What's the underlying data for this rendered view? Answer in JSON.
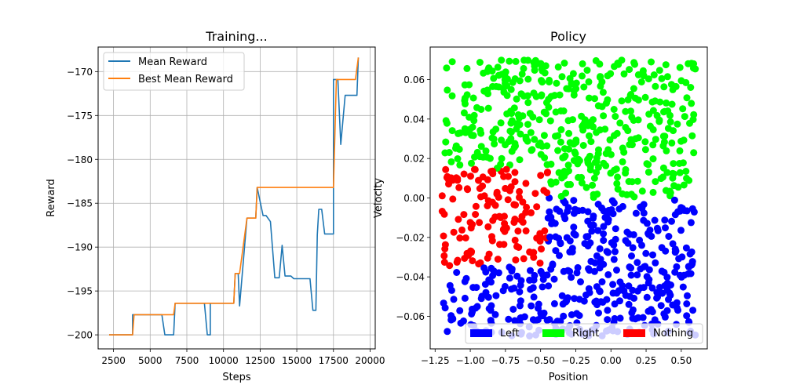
{
  "chart_data": [
    {
      "type": "line",
      "title": "Training...",
      "xlabel": "Steps",
      "ylabel": "Reward",
      "xlim": [
        1450,
        20350
      ],
      "ylim": [
        -201.6,
        -167.2
      ],
      "xticks": [
        2500,
        5000,
        7500,
        10000,
        12500,
        15000,
        17500,
        20000
      ],
      "yticks": [
        -200,
        -195,
        -190,
        -185,
        -180,
        -175,
        -170
      ],
      "grid": true,
      "legend": "upper-left",
      "series": [
        {
          "name": "Mean Reward",
          "color": "#1f77b4",
          "x": [
            2200,
            3800,
            3800,
            5800,
            6000,
            6600,
            6700,
            8700,
            8900,
            9100,
            9100,
            10700,
            10800,
            11000,
            11100,
            11600,
            12200,
            12300,
            12700,
            12900,
            13200,
            13500,
            13800,
            14000,
            14200,
            14400,
            14600,
            14800,
            15200,
            15900,
            16100,
            16300,
            16400,
            16500,
            16700,
            16900,
            17300,
            17500,
            17500,
            17800,
            18000,
            18300,
            18700,
            19100,
            19200
          ],
          "y": [
            -200,
            -200,
            -197.7,
            -197.7,
            -200,
            -200,
            -196.4,
            -196.4,
            -200,
            -200,
            -196.4,
            -196.4,
            -193,
            -193,
            -196.7,
            -186.7,
            -186.7,
            -183.2,
            -186.4,
            -186.4,
            -187.1,
            -193.5,
            -193.5,
            -189.8,
            -193.3,
            -193.3,
            -193.3,
            -193.6,
            -193.6,
            -193.6,
            -197.2,
            -197.2,
            -188.6,
            -185.7,
            -185.7,
            -188.5,
            -188.5,
            -188.5,
            -170.9,
            -170.9,
            -178.3,
            -172.7,
            -172.7,
            -172.7,
            -168.4
          ]
        },
        {
          "name": "Best Mean Reward",
          "color": "#ff7f0e",
          "x": [
            2200,
            3800,
            3900,
            6600,
            6700,
            10700,
            10800,
            11100,
            11600,
            12200,
            12300,
            17500,
            17700,
            19000,
            19200
          ],
          "y": [
            -200,
            -200,
            -197.7,
            -197.7,
            -196.4,
            -196.4,
            -193,
            -193,
            -186.7,
            -186.7,
            -183.2,
            -183.2,
            -170.9,
            -170.9,
            -168.4
          ]
        }
      ]
    },
    {
      "type": "scatter",
      "title": "Policy",
      "xlabel": "Position",
      "ylabel": "Velocity",
      "xlim": [
        -1.285,
        0.685
      ],
      "ylim": [
        -0.0765,
        0.0765
      ],
      "xticks": [
        -1.25,
        -1.0,
        -0.75,
        -0.5,
        -0.25,
        0.0,
        0.25,
        0.5
      ],
      "xtick_labels": [
        "−1.25",
        "−1.00",
        "−0.75",
        "−0.50",
        "−0.25",
        "0.00",
        "0.25",
        "0.50"
      ],
      "yticks": [
        -0.06,
        -0.04,
        -0.02,
        0.0,
        0.02,
        0.04,
        0.06
      ],
      "ytick_labels": [
        "−0.06",
        "−0.04",
        "−0.02",
        "0.00",
        "0.02",
        "0.04",
        "0.06"
      ],
      "grid": false,
      "legend": "lower-right",
      "classes": [
        {
          "name": "Left",
          "color": "#0000ff"
        },
        {
          "name": "Right",
          "color": "#00ff00"
        },
        {
          "name": "Nothing",
          "color": "#ff0000"
        }
      ],
      "sampling": {
        "n": 1000,
        "x_range": [
          -1.2,
          0.6
        ],
        "y_range": [
          -0.07,
          0.07
        ]
      },
      "rule": "Right if velocity > 0.015 or (velocity > 0.0 and position > -0.45); Nothing if -0.035 < velocity <= 0.015 and position < -0.45; otherwise Left"
    }
  ]
}
